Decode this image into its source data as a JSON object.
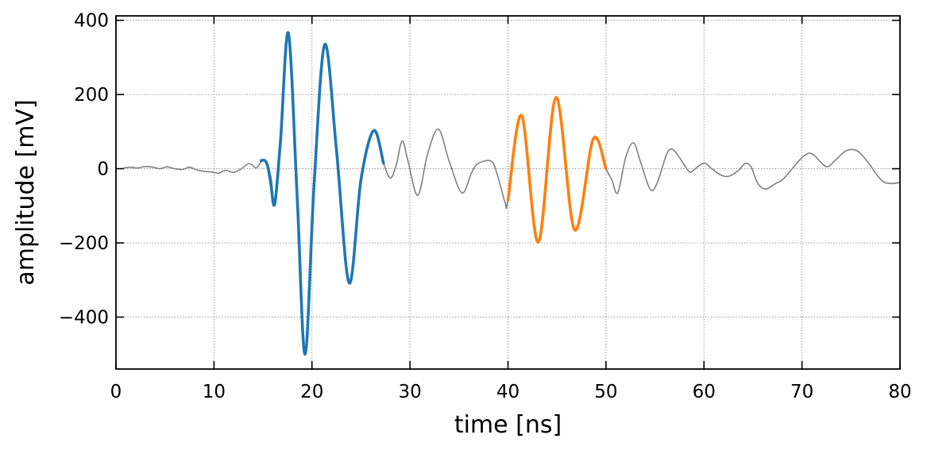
{
  "chart_data": {
    "type": "line",
    "title": "",
    "xlabel": "time [ns]",
    "ylabel": "amplitude [mV]",
    "xlim": [
      0,
      80
    ],
    "ylim": [
      -540,
      412
    ],
    "xticks": [
      0,
      10,
      20,
      30,
      40,
      50,
      60,
      70,
      80
    ],
    "xtick_labels": [
      "0",
      "10",
      "20",
      "30",
      "40",
      "50",
      "60",
      "70",
      "80"
    ],
    "yticks": [
      -400,
      -200,
      0,
      200,
      400
    ],
    "ytick_labels": [
      "−400",
      "−200",
      "0",
      "200",
      "400"
    ],
    "grid": true,
    "legend": "none",
    "series": [
      {
        "role": "full-waveform",
        "color": "#808080",
        "points": [
          [
            0.8,
            2
          ],
          [
            1.5,
            4
          ],
          [
            2.2,
            2
          ],
          [
            3,
            6
          ],
          [
            3.8,
            4
          ],
          [
            4.5,
            0
          ],
          [
            5.2,
            5
          ],
          [
            6,
            0
          ],
          [
            6.8,
            -2
          ],
          [
            7.5,
            4
          ],
          [
            8.2,
            -3
          ],
          [
            9,
            -7
          ],
          [
            9.8,
            -9
          ],
          [
            10.5,
            -12
          ],
          [
            11.2,
            -4
          ],
          [
            12,
            -10
          ],
          [
            12.8,
            0
          ],
          [
            13.6,
            14
          ],
          [
            14.3,
            2
          ],
          [
            14.8,
            18
          ],
          [
            15.2,
            22
          ],
          [
            15.8,
            -20
          ],
          [
            16.2,
            -95
          ],
          [
            16.8,
            80
          ],
          [
            17.6,
            365
          ],
          [
            18.5,
            -80
          ],
          [
            19.3,
            -500
          ],
          [
            20.2,
            -50
          ],
          [
            21.3,
            335
          ],
          [
            22.5,
            50
          ],
          [
            23.8,
            -308
          ],
          [
            25,
            -30
          ],
          [
            26.3,
            103
          ],
          [
            27.3,
            15
          ],
          [
            28,
            -25
          ],
          [
            28.6,
            10
          ],
          [
            29.2,
            75
          ],
          [
            29.8,
            20
          ],
          [
            30.8,
            -72
          ],
          [
            31.8,
            40
          ],
          [
            32.9,
            107
          ],
          [
            34,
            20
          ],
          [
            35.3,
            -65
          ],
          [
            36.3,
            -10
          ],
          [
            37,
            15
          ],
          [
            38.3,
            20
          ],
          [
            38.9,
            -15
          ],
          [
            39.7,
            -90
          ],
          [
            40,
            -85
          ],
          [
            41.4,
            143
          ],
          [
            43.1,
            -198
          ],
          [
            44.9,
            192
          ],
          [
            46.8,
            -165
          ],
          [
            48.7,
            80
          ],
          [
            50,
            0
          ],
          [
            50.6,
            -30
          ],
          [
            51.2,
            -65
          ],
          [
            52,
            30
          ],
          [
            52.8,
            70
          ],
          [
            53.5,
            20
          ],
          [
            54.5,
            -55
          ],
          [
            55.2,
            -40
          ],
          [
            56.2,
            40
          ],
          [
            56.8,
            52
          ],
          [
            57.5,
            30
          ],
          [
            58.5,
            -8
          ],
          [
            59,
            -2
          ],
          [
            60,
            15
          ],
          [
            60.8,
            0
          ],
          [
            61.8,
            -18
          ],
          [
            62.6,
            -20
          ],
          [
            63.5,
            -5
          ],
          [
            64.2,
            14
          ],
          [
            64.8,
            5
          ],
          [
            65.5,
            -40
          ],
          [
            66.3,
            -55
          ],
          [
            67.3,
            -40
          ],
          [
            68,
            -30
          ],
          [
            69,
            0
          ],
          [
            70,
            30
          ],
          [
            70.7,
            42
          ],
          [
            71.3,
            35
          ],
          [
            72,
            15
          ],
          [
            72.6,
            5
          ],
          [
            73.3,
            20
          ],
          [
            74.3,
            45
          ],
          [
            75,
            52
          ],
          [
            75.8,
            45
          ],
          [
            76.8,
            15
          ],
          [
            77.6,
            -15
          ],
          [
            78.3,
            -35
          ],
          [
            79.1,
            -40
          ],
          [
            80,
            -37
          ]
        ]
      },
      {
        "role": "pulse-1",
        "color": "#1f77b4",
        "points": [
          [
            14.8,
            22
          ],
          [
            15.2,
            22
          ],
          [
            15.5,
            5
          ],
          [
            15.8,
            -40
          ],
          [
            16.2,
            -95
          ],
          [
            16.8,
            80
          ],
          [
            17.6,
            365
          ],
          [
            18.5,
            -80
          ],
          [
            19.3,
            -500
          ],
          [
            20.2,
            -50
          ],
          [
            21.3,
            335
          ],
          [
            22.5,
            50
          ],
          [
            23.8,
            -308
          ],
          [
            25,
            -30
          ],
          [
            26.3,
            103
          ],
          [
            27.3,
            15
          ]
        ]
      },
      {
        "role": "pulse-2",
        "color": "#ff7f0e",
        "points": [
          [
            40,
            -85
          ],
          [
            41.4,
            143
          ],
          [
            43.1,
            -198
          ],
          [
            44.9,
            192
          ],
          [
            46.8,
            -165
          ],
          [
            48.7,
            80
          ],
          [
            50,
            0
          ]
        ]
      }
    ]
  }
}
